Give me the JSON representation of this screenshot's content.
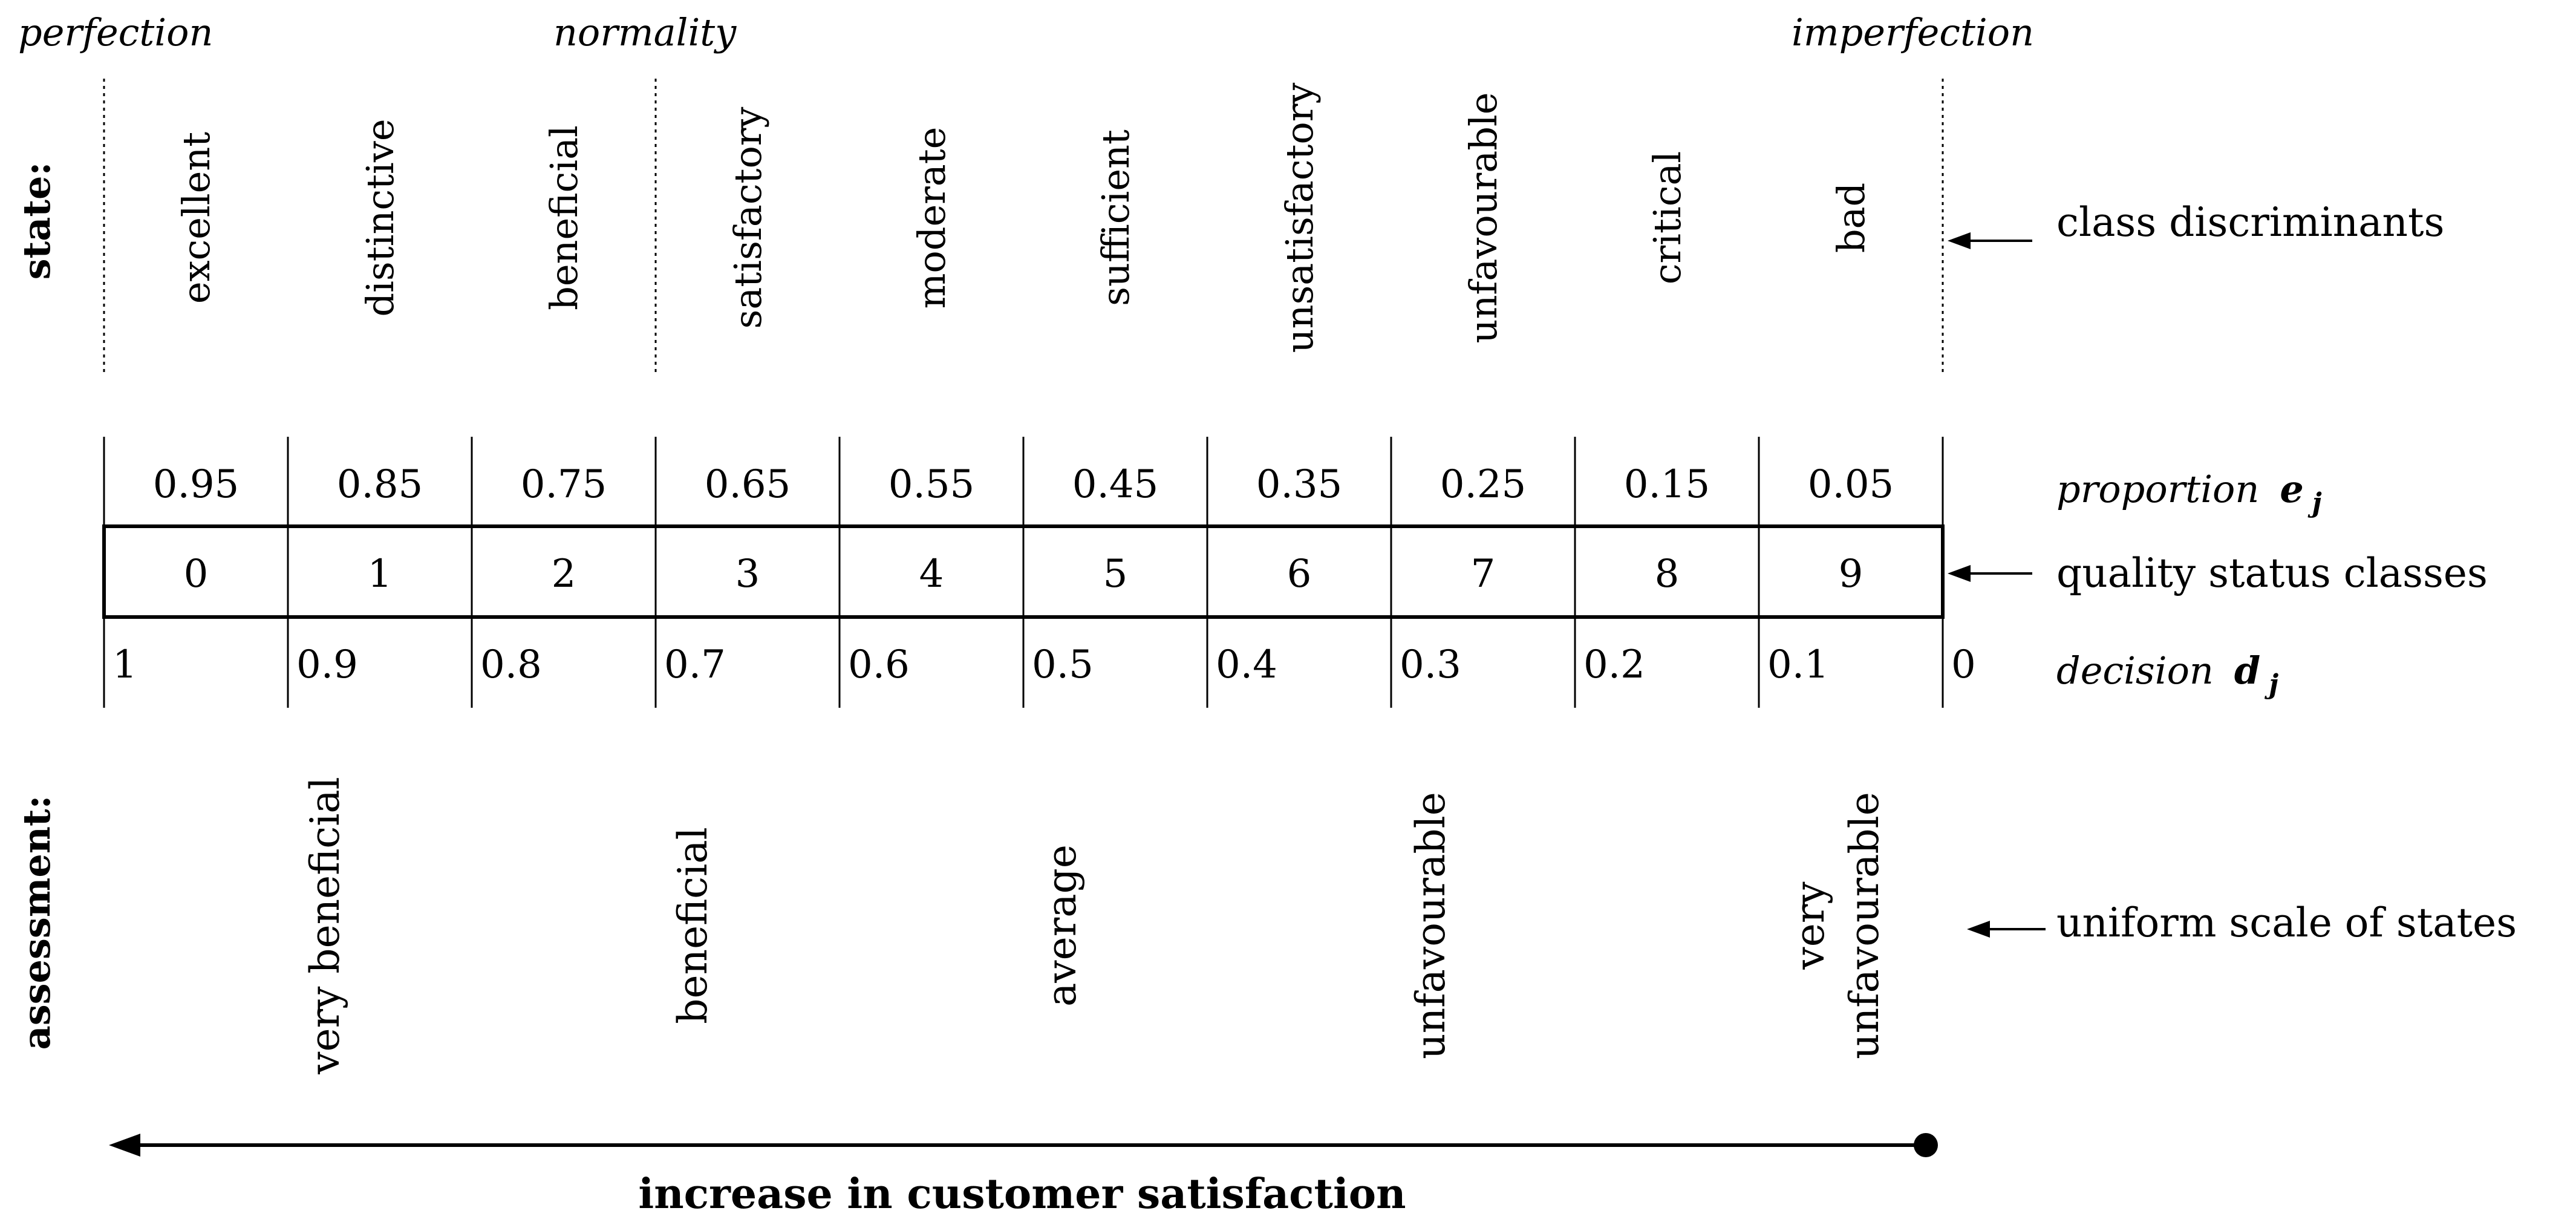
{
  "header": {
    "left_label": "perfection",
    "middle_label": "normality",
    "right_label": "imperfection"
  },
  "state": {
    "axis_label": "state:",
    "classes": [
      "excellent",
      "distinctive",
      "beneficial",
      "satisfactory",
      "moderate",
      "sufficient",
      "unsatisfactory",
      "unfavourable",
      "critical",
      "bad"
    ]
  },
  "proportion": {
    "values": [
      "0.95",
      "0.85",
      "0.75",
      "0.65",
      "0.55",
      "0.45",
      "0.35",
      "0.25",
      "0.15",
      "0.05"
    ],
    "label": "proportion",
    "symbol": "e",
    "subscript": "j"
  },
  "quality_classes": {
    "values": [
      "0",
      "1",
      "2",
      "3",
      "4",
      "5",
      "6",
      "7",
      "8",
      "9"
    ],
    "label": "quality status classes"
  },
  "decision": {
    "values": [
      "1",
      "0.9",
      "0.8",
      "0.7",
      "0.6",
      "0.5",
      "0.4",
      "0.3",
      "0.2",
      "0.1",
      "0"
    ],
    "label": "decision",
    "symbol": "d",
    "subscript": "j"
  },
  "right_labels": {
    "class_discriminants": "class discriminants",
    "uniform_scale": "uniform scale of states"
  },
  "assessment": {
    "axis_label": "assessment:",
    "items": [
      {
        "lines": [
          "very beneficial"
        ]
      },
      {
        "lines": [
          "beneficial"
        ]
      },
      {
        "lines": [
          "average"
        ]
      },
      {
        "lines": [
          "unfavourable"
        ]
      },
      {
        "lines": [
          "very",
          "unfavourable"
        ]
      }
    ]
  },
  "footer": {
    "caption": "increase in customer satisfaction"
  }
}
